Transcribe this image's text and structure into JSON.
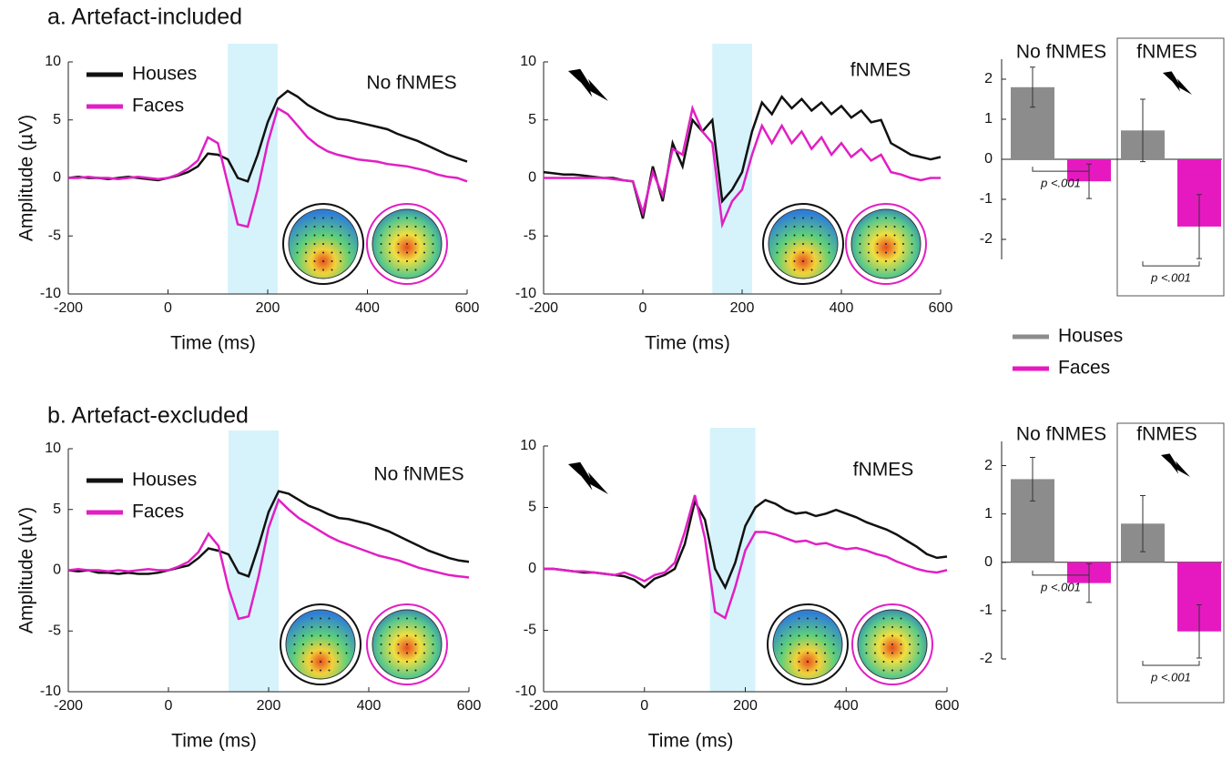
{
  "sections": [
    "a. Artefact-included",
    "b. Artefact-excluded"
  ],
  "bar_legend": [
    {
      "name": "Houses",
      "color": "#8c8c8c"
    },
    {
      "name": "Faces",
      "color": "#e619c0"
    }
  ],
  "chart_data": [
    {
      "type": "line",
      "title": "No fNMES",
      "xlabel": "Time (ms)",
      "ylabel": "Amplitude (µV)",
      "legend": "upper left",
      "x": [
        -200,
        -180,
        -160,
        -140,
        -120,
        -100,
        -80,
        -60,
        -40,
        -20,
        0,
        20,
        40,
        60,
        80,
        100,
        120,
        140,
        160,
        180,
        200,
        220,
        240,
        260,
        280,
        300,
        320,
        340,
        360,
        380,
        400,
        420,
        440,
        460,
        480,
        500,
        520,
        540,
        560,
        580,
        600
      ],
      "series": [
        {
          "name": "Houses",
          "color": "#111111",
          "values": [
            0,
            0.1,
            0,
            0,
            -0.1,
            0,
            0.1,
            0,
            -0.1,
            -0.2,
            0,
            0.2,
            0.5,
            1.0,
            2.1,
            2.0,
            1.6,
            0.0,
            -0.3,
            2.0,
            4.8,
            6.8,
            7.5,
            7.0,
            6.3,
            5.8,
            5.4,
            5.1,
            5.0,
            4.8,
            4.6,
            4.4,
            4.2,
            3.8,
            3.5,
            3.2,
            2.8,
            2.4,
            2.0,
            1.7,
            1.4
          ]
        },
        {
          "name": "Faces",
          "color": "#e11fc4",
          "values": [
            0,
            0,
            0.1,
            0,
            0,
            -0.1,
            0,
            0.1,
            0,
            -0.1,
            0,
            0.3,
            0.8,
            1.5,
            3.5,
            3.0,
            -0.5,
            -4.0,
            -4.2,
            -1.0,
            3.0,
            6.0,
            5.5,
            4.5,
            3.5,
            2.8,
            2.3,
            2.0,
            1.8,
            1.6,
            1.5,
            1.4,
            1.2,
            1.1,
            1.0,
            0.8,
            0.6,
            0.3,
            0.1,
            0,
            -0.3
          ]
        }
      ],
      "highlight": [
        120,
        220
      ],
      "xlim": [
        -200,
        600
      ],
      "ylim": [
        -10,
        10
      ],
      "xticks": [
        -200,
        0,
        200,
        400,
        600
      ],
      "yticks": [
        -10,
        -5,
        0,
        5,
        10
      ]
    },
    {
      "type": "line",
      "title": "fNMES",
      "xlabel": "Time (ms)",
      "x": [
        -200,
        -180,
        -160,
        -140,
        -120,
        -100,
        -80,
        -60,
        -40,
        -20,
        0,
        20,
        40,
        60,
        80,
        100,
        120,
        140,
        160,
        180,
        200,
        220,
        240,
        260,
        280,
        300,
        320,
        340,
        360,
        380,
        400,
        420,
        440,
        460,
        480,
        500,
        520,
        540,
        560,
        580,
        600
      ],
      "series": [
        {
          "color": "#111111",
          "values": [
            0.5,
            0.4,
            0.3,
            0.3,
            0.2,
            0.1,
            0,
            0,
            -0.2,
            -0.3,
            -3.5,
            1,
            -2,
            3,
            1,
            5,
            4,
            5,
            -2,
            -1,
            0.5,
            4,
            6.5,
            5.5,
            7,
            6,
            6.8,
            5.8,
            6.5,
            5.5,
            6.2,
            5.2,
            5.8,
            4.8,
            5,
            3,
            2.5,
            2.0,
            1.8,
            1.6,
            1.8
          ]
        },
        {
          "color": "#e11fc4",
          "values": [
            0,
            0,
            0,
            0,
            0,
            0,
            0,
            -0.1,
            -0.2,
            -0.3,
            -3,
            0.5,
            -1.5,
            2.5,
            2,
            6,
            4,
            3,
            -4,
            -2,
            -1,
            2,
            4.5,
            3,
            4.5,
            3,
            4,
            2.5,
            3.5,
            2,
            3,
            1.8,
            2.5,
            1.5,
            2,
            0.5,
            0.3,
            0,
            -0.2,
            0,
            0
          ]
        }
      ],
      "highlight": [
        140,
        220
      ],
      "xlim": [
        -200,
        600
      ],
      "ylim": [
        -10,
        10
      ],
      "xticks": [
        -200,
        0,
        200,
        400,
        600
      ],
      "yticks": [
        -10,
        -5,
        0,
        5,
        10
      ]
    },
    {
      "type": "line",
      "title": "No fNMES",
      "xlabel": "Time (ms)",
      "ylabel": "Amplitude (µV)",
      "legend": "upper left",
      "x": [
        -200,
        -180,
        -160,
        -140,
        -120,
        -100,
        -80,
        -60,
        -40,
        -20,
        0,
        20,
        40,
        60,
        80,
        100,
        120,
        140,
        160,
        180,
        200,
        220,
        240,
        260,
        280,
        300,
        320,
        340,
        360,
        380,
        400,
        420,
        440,
        460,
        480,
        500,
        520,
        540,
        560,
        580,
        600
      ],
      "series": [
        {
          "name": "Houses",
          "color": "#111111",
          "values": [
            0,
            -0.1,
            0,
            -0.2,
            -0.2,
            -0.3,
            -0.2,
            -0.3,
            -0.3,
            -0.2,
            0,
            0.2,
            0.4,
            1.0,
            1.8,
            1.6,
            1.3,
            -0.2,
            -0.5,
            2.0,
            4.8,
            6.5,
            6.3,
            5.8,
            5.3,
            5.0,
            4.6,
            4.3,
            4.2,
            4.0,
            3.8,
            3.5,
            3.2,
            2.8,
            2.4,
            2.0,
            1.6,
            1.3,
            1.0,
            0.8,
            0.7
          ]
        },
        {
          "name": "Faces",
          "color": "#e11fc4",
          "values": [
            0,
            0.1,
            0,
            0,
            -0.1,
            0,
            -0.1,
            0,
            0.1,
            0,
            0,
            0.3,
            0.7,
            1.5,
            3.0,
            2.0,
            -1.5,
            -4.0,
            -3.8,
            -0.5,
            3.5,
            5.8,
            5.0,
            4.3,
            3.8,
            3.3,
            2.8,
            2.4,
            2.1,
            1.8,
            1.5,
            1.2,
            1.0,
            0.8,
            0.5,
            0.2,
            0,
            -0.2,
            -0.4,
            -0.5,
            -0.6
          ]
        }
      ],
      "highlight": [
        120,
        220
      ],
      "xlim": [
        -200,
        600
      ],
      "ylim": [
        -10,
        10
      ],
      "xticks": [
        -200,
        0,
        200,
        400,
        600
      ],
      "yticks": [
        -10,
        -5,
        0,
        5,
        10
      ]
    },
    {
      "type": "line",
      "title": "fNMES",
      "xlabel": "Time (ms)",
      "x": [
        -200,
        -180,
        -160,
        -140,
        -120,
        -100,
        -80,
        -60,
        -40,
        -20,
        0,
        20,
        40,
        60,
        80,
        100,
        120,
        140,
        160,
        180,
        200,
        220,
        240,
        260,
        280,
        300,
        320,
        340,
        360,
        380,
        400,
        420,
        440,
        460,
        480,
        500,
        520,
        540,
        560,
        580,
        600
      ],
      "series": [
        {
          "color": "#111111",
          "values": [
            0,
            0,
            -0.1,
            -0.2,
            -0.3,
            -0.3,
            -0.4,
            -0.5,
            -0.6,
            -0.9,
            -1.5,
            -0.8,
            -0.5,
            0,
            2,
            5.5,
            4.0,
            0,
            -1.5,
            0.5,
            3.5,
            5.0,
            5.6,
            5.3,
            4.8,
            4.5,
            4.6,
            4.3,
            4.5,
            4.8,
            4.5,
            4.2,
            3.8,
            3.5,
            3.2,
            2.8,
            2.3,
            1.8,
            1.2,
            0.9,
            1.0
          ]
        },
        {
          "color": "#e11fc4",
          "values": [
            0,
            0,
            -0.1,
            -0.2,
            -0.2,
            -0.3,
            -0.4,
            -0.5,
            -0.3,
            -0.6,
            -1.0,
            -0.5,
            -0.3,
            0.5,
            3.0,
            6.0,
            2.5,
            -3.5,
            -4.0,
            -1.5,
            1.5,
            3.0,
            3.0,
            2.8,
            2.5,
            2.2,
            2.3,
            2.0,
            2.1,
            1.8,
            1.6,
            1.7,
            1.5,
            1.2,
            1.0,
            0.6,
            0.3,
            0,
            -0.2,
            -0.3,
            -0.1
          ]
        }
      ],
      "highlight": [
        130,
        220
      ],
      "xlim": [
        -200,
        600
      ],
      "ylim": [
        -10,
        10
      ],
      "xticks": [
        -200,
        0,
        200,
        400,
        600
      ],
      "yticks": [
        -10,
        -5,
        0,
        5,
        10
      ]
    },
    {
      "type": "bar",
      "categories": [
        "No fNMES",
        "fNMES"
      ],
      "series": [
        {
          "color": "#8c8c8c",
          "values": [
            1.8,
            0.72
          ],
          "errors": [
            0.5,
            0.78
          ]
        },
        {
          "color": "#e619c0",
          "values": [
            -0.55,
            -1.68
          ],
          "errors": [
            0.43,
            0.8
          ]
        }
      ],
      "annotations": [
        "p <.001",
        "p <.001"
      ],
      "ylim": [
        -2.5,
        2.5
      ],
      "yticks": [
        -2,
        -1,
        0,
        1,
        2
      ]
    },
    {
      "type": "bar",
      "categories": [
        "No fNMES",
        "fNMES"
      ],
      "series": [
        {
          "color": "#8c8c8c",
          "values": [
            1.72,
            0.8
          ],
          "errors": [
            0.45,
            0.58
          ]
        },
        {
          "color": "#e619c0",
          "values": [
            -0.43,
            -1.43
          ],
          "errors": [
            0.4,
            0.55
          ]
        }
      ],
      "annotations": [
        "p <.001",
        "p <.001"
      ],
      "ylim": [
        -2,
        2.5
      ],
      "yticks": [
        -2,
        -1,
        0,
        1,
        2
      ]
    }
  ]
}
